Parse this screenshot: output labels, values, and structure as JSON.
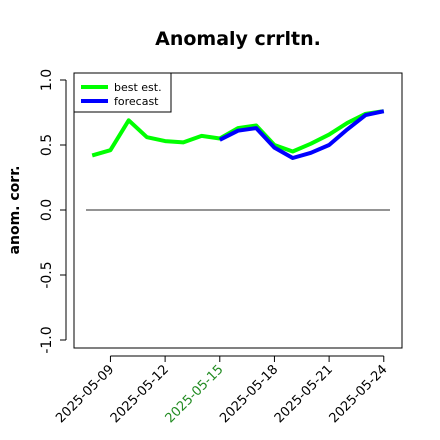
{
  "chart_data": {
    "type": "line",
    "title": "Anomaly crrltn.",
    "xlabel": "",
    "ylabel": "anom. corr.",
    "ylim": [
      -1.0,
      1.0
    ],
    "yticks": [
      -1.0,
      -0.5,
      0.0,
      0.5,
      1.0
    ],
    "ytick_labels": [
      "-1.0",
      "-0.5",
      "0.0",
      "0.5",
      "1.0"
    ],
    "xlim": [
      "2025-05-07",
      "2025-05-25"
    ],
    "xticks": [
      "2025-05-09",
      "2025-05-12",
      "2025-05-15",
      "2025-05-18",
      "2025-05-21",
      "2025-05-24"
    ],
    "highlight_tick": "2025-05-15",
    "highlight_color": "#228B22",
    "reference_line": {
      "y": 0.0,
      "color": "#555555"
    },
    "legend_position": "top-left",
    "grid": false,
    "series": [
      {
        "name": "best est.",
        "color": "#00FF00",
        "x": [
          "2025-05-08",
          "2025-05-09",
          "2025-05-10",
          "2025-05-11",
          "2025-05-12",
          "2025-05-13",
          "2025-05-14",
          "2025-05-15",
          "2025-05-16",
          "2025-05-17",
          "2025-05-18",
          "2025-05-19",
          "2025-05-20",
          "2025-05-21",
          "2025-05-22",
          "2025-05-23",
          "2025-05-24"
        ],
        "y": [
          0.42,
          0.46,
          0.69,
          0.56,
          0.53,
          0.52,
          0.57,
          0.55,
          0.63,
          0.65,
          0.5,
          0.45,
          0.51,
          0.58,
          0.67,
          0.74,
          0.76
        ]
      },
      {
        "name": "forecast",
        "color": "#0000FF",
        "x": [
          "2025-05-15",
          "2025-05-16",
          "2025-05-17",
          "2025-05-18",
          "2025-05-19",
          "2025-05-20",
          "2025-05-21",
          "2025-05-22",
          "2025-05-23",
          "2025-05-24"
        ],
        "y": [
          0.54,
          0.61,
          0.63,
          0.48,
          0.4,
          0.44,
          0.5,
          0.62,
          0.73,
          0.76
        ]
      }
    ]
  }
}
